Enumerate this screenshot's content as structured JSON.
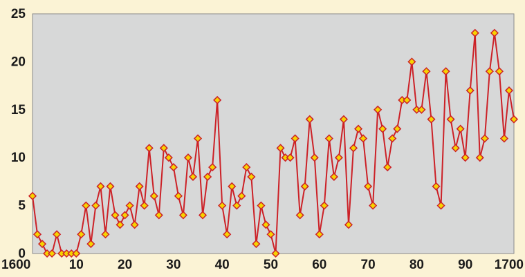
{
  "chart_data": {
    "type": "line",
    "title": "",
    "xlabel": "",
    "ylabel": "",
    "xlim": [
      1601,
      1700
    ],
    "ylim": [
      0,
      25
    ],
    "grid": false,
    "colors": {
      "page_background": "#fbf3d5",
      "plot_background": "#d7d8d8",
      "line": "#cc2127",
      "marker_fill": "#f6d300",
      "marker_stroke": "#cc2127"
    },
    "x_tick_labels": [
      {
        "value": 1600,
        "label": "1600"
      },
      {
        "value": 1610,
        "label": "10"
      },
      {
        "value": 1620,
        "label": "20"
      },
      {
        "value": 1630,
        "label": "30"
      },
      {
        "value": 1640,
        "label": "40"
      },
      {
        "value": 1650,
        "label": "50"
      },
      {
        "value": 1660,
        "label": "60"
      },
      {
        "value": 1670,
        "label": "70"
      },
      {
        "value": 1680,
        "label": "80"
      },
      {
        "value": 1690,
        "label": "90"
      },
      {
        "value": 1700,
        "label": "1700"
      }
    ],
    "y_tick_labels": [
      {
        "value": 0,
        "label": "0"
      },
      {
        "value": 5,
        "label": "5"
      },
      {
        "value": 10,
        "label": "10"
      },
      {
        "value": 15,
        "label": "15"
      },
      {
        "value": 20,
        "label": "20"
      },
      {
        "value": 25,
        "label": "25"
      }
    ],
    "x": [
      1601,
      1602,
      1603,
      1604,
      1605,
      1606,
      1607,
      1608,
      1609,
      1610,
      1611,
      1612,
      1613,
      1614,
      1615,
      1616,
      1617,
      1618,
      1619,
      1620,
      1621,
      1622,
      1623,
      1624,
      1625,
      1626,
      1627,
      1628,
      1629,
      1630,
      1631,
      1632,
      1633,
      1634,
      1635,
      1636,
      1637,
      1638,
      1639,
      1640,
      1641,
      1642,
      1643,
      1644,
      1645,
      1646,
      1647,
      1648,
      1649,
      1650,
      1651,
      1652,
      1653,
      1654,
      1655,
      1656,
      1657,
      1658,
      1659,
      1660,
      1661,
      1662,
      1663,
      1664,
      1665,
      1666,
      1667,
      1668,
      1669,
      1670,
      1671,
      1672,
      1673,
      1674,
      1675,
      1676,
      1677,
      1678,
      1679,
      1680,
      1681,
      1682,
      1683,
      1684,
      1685,
      1686,
      1687,
      1688,
      1689,
      1690,
      1691,
      1692,
      1693,
      1694,
      1695,
      1696,
      1697,
      1698,
      1699,
      1700
    ],
    "series": [
      {
        "values": [
          6,
          2,
          1,
          0,
          0,
          2,
          0,
          0,
          0,
          0,
          2,
          5,
          1,
          5,
          7,
          2,
          7,
          4,
          3,
          4,
          5,
          3,
          7,
          5,
          11,
          6,
          4,
          11,
          10,
          9,
          6,
          4,
          10,
          8,
          12,
          4,
          8,
          9,
          16,
          5,
          2,
          7,
          5,
          6,
          9,
          8,
          1,
          5,
          3,
          2,
          0,
          11,
          10,
          10,
          12,
          4,
          7,
          14,
          10,
          2,
          5,
          12,
          8,
          10,
          14,
          3,
          11,
          13,
          12,
          7,
          5,
          15,
          13,
          9,
          12,
          13,
          16,
          16,
          20,
          15,
          15,
          19,
          14,
          7,
          5,
          19,
          14,
          11,
          13,
          10,
          17,
          23,
          10,
          12,
          19,
          23,
          19,
          12,
          17,
          14
        ]
      }
    ]
  }
}
